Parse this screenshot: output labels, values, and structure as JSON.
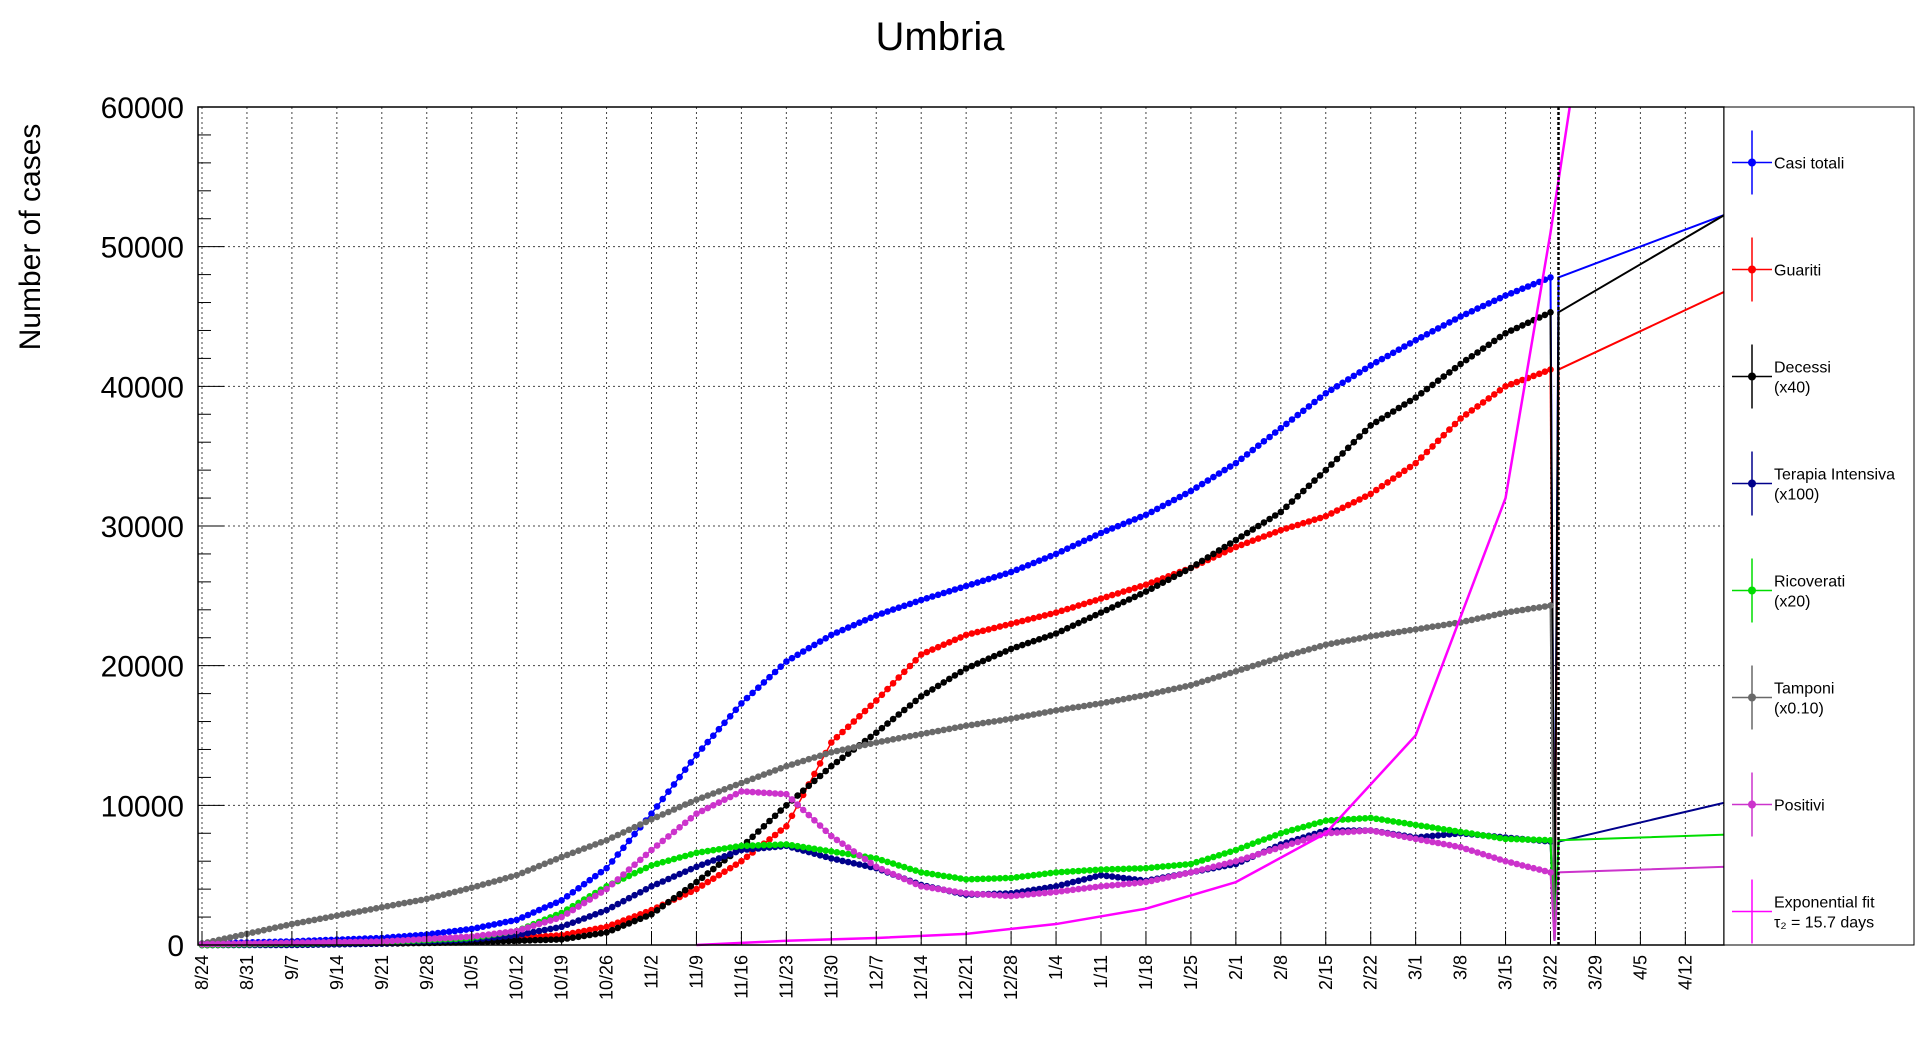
{
  "chart_data": {
    "type": "line",
    "title": "Umbria",
    "xlabel": "",
    "ylabel": "Number of cases",
    "ylim": [
      0,
      60000
    ],
    "y_ticks": [
      0,
      10000,
      20000,
      30000,
      40000,
      50000,
      60000
    ],
    "y_tick_labels": [
      "0",
      "10000",
      "20000",
      "30000",
      "40000",
      "50000",
      "60000"
    ],
    "x_ticks": [
      "8/24",
      "8/31",
      "9/7",
      "9/14",
      "9/21",
      "9/28",
      "10/5",
      "10/12",
      "10/19",
      "10/26",
      "11/2",
      "11/9",
      "11/16",
      "11/23",
      "11/30",
      "12/7",
      "12/14",
      "12/21",
      "12/28",
      "1/4",
      "1/11",
      "1/18",
      "1/25",
      "2/1",
      "2/8",
      "2/15",
      "2/22",
      "3/1",
      "3/8",
      "3/15",
      "3/22",
      "3/29",
      "4/5",
      "4/12"
    ],
    "grid": true,
    "legend_position": "right",
    "marker_line_date": "3/22",
    "series": [
      {
        "name": "Casi totali",
        "color": "#0000ff",
        "points": [
          [
            "8/24",
            100
          ],
          [
            "8/31",
            180
          ],
          [
            "9/7",
            260
          ],
          [
            "9/14",
            380
          ],
          [
            "9/21",
            500
          ],
          [
            "9/28",
            750
          ],
          [
            "10/5",
            1150
          ],
          [
            "10/12",
            1800
          ],
          [
            "10/19",
            3200
          ],
          [
            "10/26",
            5500
          ],
          [
            "11/2",
            9400
          ],
          [
            "11/9",
            13600
          ],
          [
            "11/16",
            17300
          ],
          [
            "11/23",
            20300
          ],
          [
            "11/30",
            22200
          ],
          [
            "12/7",
            23600
          ],
          [
            "12/14",
            24700
          ],
          [
            "12/21",
            25700
          ],
          [
            "12/28",
            26700
          ],
          [
            "1/4",
            28000
          ],
          [
            "1/11",
            29500
          ],
          [
            "1/18",
            30800
          ],
          [
            "1/25",
            32500
          ],
          [
            "2/1",
            34500
          ],
          [
            "2/8",
            37000
          ],
          [
            "2/15",
            39500
          ],
          [
            "2/22",
            41500
          ],
          [
            "3/1",
            43300
          ],
          [
            "3/8",
            45000
          ],
          [
            "3/15",
            46500
          ],
          [
            "3/22",
            47800
          ]
        ]
      },
      {
        "name": "Guariti",
        "color": "#ff0000",
        "points": [
          [
            "8/24",
            50
          ],
          [
            "9/7",
            80
          ],
          [
            "9/21",
            150
          ],
          [
            "10/5",
            300
          ],
          [
            "10/19",
            700
          ],
          [
            "10/26",
            1300
          ],
          [
            "11/2",
            2500
          ],
          [
            "11/9",
            4000
          ],
          [
            "11/16",
            6000
          ],
          [
            "11/23",
            8500
          ],
          [
            "11/30",
            14500
          ],
          [
            "12/7",
            17500
          ],
          [
            "12/14",
            20800
          ],
          [
            "12/21",
            22200
          ],
          [
            "12/28",
            23000
          ],
          [
            "1/4",
            23800
          ],
          [
            "1/11",
            24800
          ],
          [
            "1/18",
            25800
          ],
          [
            "1/25",
            27000
          ],
          [
            "2/1",
            28500
          ],
          [
            "2/8",
            29700
          ],
          [
            "2/15",
            30700
          ],
          [
            "2/22",
            32300
          ],
          [
            "3/1",
            34500
          ],
          [
            "3/8",
            37700
          ],
          [
            "3/15",
            40000
          ],
          [
            "3/22",
            41200
          ]
        ]
      },
      {
        "name": "Decessi\n(x40)",
        "color": "#000000",
        "points": [
          [
            "8/24",
            0
          ],
          [
            "9/7",
            50
          ],
          [
            "9/21",
            100
          ],
          [
            "10/5",
            200
          ],
          [
            "10/19",
            400
          ],
          [
            "10/26",
            900
          ],
          [
            "11/2",
            2200
          ],
          [
            "11/9",
            4500
          ],
          [
            "11/16",
            7000
          ],
          [
            "11/23",
            10000
          ],
          [
            "11/30",
            12800
          ],
          [
            "12/7",
            15200
          ],
          [
            "12/14",
            17800
          ],
          [
            "12/21",
            19800
          ],
          [
            "12/28",
            21200
          ],
          [
            "1/4",
            22300
          ],
          [
            "1/11",
            23800
          ],
          [
            "1/18",
            25300
          ],
          [
            "1/25",
            27000
          ],
          [
            "2/1",
            29000
          ],
          [
            "2/8",
            31000
          ],
          [
            "2/15",
            34000
          ],
          [
            "2/22",
            37200
          ],
          [
            "3/1",
            39200
          ],
          [
            "3/8",
            41600
          ],
          [
            "3/15",
            43800
          ],
          [
            "3/22",
            45300
          ]
        ]
      },
      {
        "name": "Terapia Intensiva\n(x100)",
        "color": "#00008b",
        "points": [
          [
            "8/24",
            0
          ],
          [
            "9/7",
            0
          ],
          [
            "9/21",
            100
          ],
          [
            "10/5",
            400
          ],
          [
            "10/12",
            700
          ],
          [
            "10/19",
            1300
          ],
          [
            "10/26",
            2500
          ],
          [
            "11/2",
            4200
          ],
          [
            "11/9",
            5600
          ],
          [
            "11/16",
            6800
          ],
          [
            "11/23",
            7100
          ],
          [
            "11/30",
            6200
          ],
          [
            "12/7",
            5500
          ],
          [
            "12/14",
            4300
          ],
          [
            "12/21",
            3600
          ],
          [
            "12/28",
            3700
          ],
          [
            "1/4",
            4200
          ],
          [
            "1/11",
            5000
          ],
          [
            "1/18",
            4600
          ],
          [
            "1/25",
            5200
          ],
          [
            "2/1",
            5800
          ],
          [
            "2/8",
            7200
          ],
          [
            "2/15",
            8200
          ],
          [
            "2/22",
            8200
          ],
          [
            "3/1",
            7700
          ],
          [
            "3/8",
            8000
          ],
          [
            "3/15",
            7700
          ],
          [
            "3/22",
            7400
          ]
        ]
      },
      {
        "name": "Ricoverati\n(x20)",
        "color": "#00dd00",
        "points": [
          [
            "8/24",
            0
          ],
          [
            "9/7",
            100
          ],
          [
            "9/21",
            200
          ],
          [
            "10/5",
            500
          ],
          [
            "10/12",
            1000
          ],
          [
            "10/19",
            2300
          ],
          [
            "10/26",
            4200
          ],
          [
            "11/2",
            5700
          ],
          [
            "11/9",
            6600
          ],
          [
            "11/16",
            7100
          ],
          [
            "11/23",
            7200
          ],
          [
            "11/30",
            6700
          ],
          [
            "12/7",
            6200
          ],
          [
            "12/14",
            5200
          ],
          [
            "12/21",
            4700
          ],
          [
            "12/28",
            4800
          ],
          [
            "1/4",
            5200
          ],
          [
            "1/11",
            5400
          ],
          [
            "1/18",
            5500
          ],
          [
            "1/25",
            5800
          ],
          [
            "2/1",
            6800
          ],
          [
            "2/8",
            8000
          ],
          [
            "2/15",
            8900
          ],
          [
            "2/22",
            9100
          ],
          [
            "3/1",
            8600
          ],
          [
            "3/8",
            8100
          ],
          [
            "3/15",
            7600
          ],
          [
            "3/22",
            7500
          ]
        ]
      },
      {
        "name": "Tamponi\n(x0.10)",
        "color": "#696969",
        "points": [
          [
            "8/24",
            100
          ],
          [
            "8/31",
            800
          ],
          [
            "9/7",
            1500
          ],
          [
            "9/14",
            2100
          ],
          [
            "9/21",
            2700
          ],
          [
            "9/28",
            3300
          ],
          [
            "10/5",
            4100
          ],
          [
            "10/12",
            5000
          ],
          [
            "10/19",
            6300
          ],
          [
            "10/26",
            7500
          ],
          [
            "11/2",
            9000
          ],
          [
            "11/9",
            10400
          ],
          [
            "11/16",
            11600
          ],
          [
            "11/23",
            12800
          ],
          [
            "11/30",
            13800
          ],
          [
            "12/7",
            14500
          ],
          [
            "12/14",
            15100
          ],
          [
            "12/21",
            15700
          ],
          [
            "12/28",
            16200
          ],
          [
            "1/4",
            16800
          ],
          [
            "1/11",
            17300
          ],
          [
            "1/18",
            17900
          ],
          [
            "1/25",
            18600
          ],
          [
            "2/1",
            19600
          ],
          [
            "2/8",
            20600
          ],
          [
            "2/15",
            21500
          ],
          [
            "2/22",
            22100
          ],
          [
            "3/1",
            22600
          ],
          [
            "3/8",
            23100
          ],
          [
            "3/15",
            23800
          ],
          [
            "3/22",
            24300
          ]
        ]
      },
      {
        "name": "Positivi",
        "color": "#cc33cc",
        "points": [
          [
            "8/24",
            50
          ],
          [
            "9/7",
            150
          ],
          [
            "9/21",
            250
          ],
          [
            "10/5",
            600
          ],
          [
            "10/12",
            1000
          ],
          [
            "10/19",
            2000
          ],
          [
            "10/26",
            4000
          ],
          [
            "11/2",
            6800
          ],
          [
            "11/9",
            9400
          ],
          [
            "11/16",
            11000
          ],
          [
            "11/23",
            10800
          ],
          [
            "11/30",
            7800
          ],
          [
            "12/7",
            5600
          ],
          [
            "12/14",
            4200
          ],
          [
            "12/21",
            3700
          ],
          [
            "12/28",
            3500
          ],
          [
            "1/4",
            3800
          ],
          [
            "1/11",
            4200
          ],
          [
            "1/18",
            4500
          ],
          [
            "1/25",
            5200
          ],
          [
            "2/1",
            6000
          ],
          [
            "2/8",
            7000
          ],
          [
            "2/15",
            8000
          ],
          [
            "2/22",
            8200
          ],
          [
            "3/1",
            7600
          ],
          [
            "3/8",
            7000
          ],
          [
            "3/15",
            6000
          ],
          [
            "3/22",
            5200
          ]
        ]
      },
      {
        "name": "Exponential fit\nτ₂ = 15.7 days",
        "color": "#ff00ff",
        "tau2_days": 15.7,
        "points": [
          [
            "11/9",
            0
          ],
          [
            "11/23",
            300
          ],
          [
            "12/7",
            500
          ],
          [
            "12/21",
            800
          ],
          [
            "1/4",
            1500
          ],
          [
            "1/18",
            2600
          ],
          [
            "2/1",
            4500
          ],
          [
            "2/15",
            8000
          ],
          [
            "3/1",
            15000
          ],
          [
            "3/15",
            32000
          ],
          [
            "3/22",
            51000
          ],
          [
            "3/25",
            60000
          ]
        ]
      }
    ]
  }
}
